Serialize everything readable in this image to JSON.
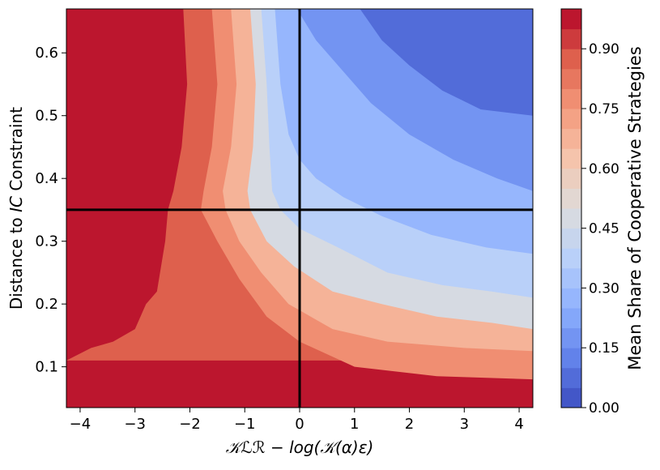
{
  "chart_data": {
    "type": "heatmap",
    "subtype": "filled-contour",
    "title": "",
    "xlabel": "𝒦ℒℛ − log(𝒦(α)ε)",
    "ylabel": "Distance to IC Constraint",
    "ylabel_parts": {
      "prefix": "Distance to ",
      "italic": "IC",
      "suffix": " Constraint"
    },
    "xlim": [
      -4.25,
      4.25
    ],
    "ylim": [
      0.035,
      0.67
    ],
    "xticks": [
      -4,
      -3,
      -2,
      -1,
      0,
      1,
      2,
      3,
      4
    ],
    "xtick_labels": [
      "−4",
      "−3",
      "−2",
      "−1",
      "0",
      "1",
      "2",
      "3",
      "4"
    ],
    "yticks": [
      0.1,
      0.2,
      0.3,
      0.4,
      0.5,
      0.6
    ],
    "ytick_labels": [
      "0.1",
      "0.2",
      "0.3",
      "0.4",
      "0.5",
      "0.6"
    ],
    "reference_lines": {
      "vertical_x": 0,
      "horizontal_y": 0.35,
      "color": "#000000"
    },
    "colorbar": {
      "label": "Mean Share of Cooperative Strategies",
      "colormap": "coolwarm",
      "range": [
        0,
        1
      ],
      "levels": 20,
      "ticks": [
        0.0,
        0.15,
        0.3,
        0.45,
        0.6,
        0.75,
        0.9
      ],
      "tick_labels": [
        "0.00",
        "0.15",
        "0.30",
        "0.45",
        "0.60",
        "0.75",
        "0.90"
      ]
    },
    "grid": false,
    "colormap_stops": [
      "#3b4cc0",
      "#6282ea",
      "#8db0fe",
      "#b9d0f9",
      "#dddcdc",
      "#f5c4ac",
      "#f49a7b",
      "#de604d",
      "#b40426"
    ],
    "iso_contours": [
      {
        "level": 0.9,
        "points": [
          [
            -2.12,
            0.67
          ],
          [
            -2.05,
            0.55
          ],
          [
            -2.15,
            0.45
          ],
          [
            -2.3,
            0.38
          ],
          [
            -2.4,
            0.35
          ],
          [
            -2.45,
            0.3
          ],
          [
            -2.6,
            0.22
          ],
          [
            -2.8,
            0.2
          ],
          [
            -3.0,
            0.16
          ],
          [
            -3.4,
            0.14
          ],
          [
            -3.8,
            0.13
          ],
          [
            -4.25,
            0.11
          ]
        ]
      },
      {
        "level": 0.8,
        "points": [
          [
            -1.6,
            0.67
          ],
          [
            -1.5,
            0.55
          ],
          [
            -1.6,
            0.45
          ],
          [
            -1.75,
            0.38
          ],
          [
            -1.8,
            0.35
          ],
          [
            -1.5,
            0.3
          ],
          [
            -1.1,
            0.24
          ],
          [
            -0.6,
            0.18
          ],
          [
            0.0,
            0.14
          ],
          [
            1.0,
            0.1
          ],
          [
            2.5,
            0.085
          ],
          [
            4.25,
            0.08
          ]
        ]
      },
      {
        "level": 0.7,
        "points": [
          [
            -1.25,
            0.67
          ],
          [
            -1.15,
            0.55
          ],
          [
            -1.25,
            0.45
          ],
          [
            -1.4,
            0.38
          ],
          [
            -1.35,
            0.35
          ],
          [
            -1.1,
            0.3
          ],
          [
            -0.7,
            0.25
          ],
          [
            -0.2,
            0.2
          ],
          [
            0.6,
            0.16
          ],
          [
            1.6,
            0.14
          ],
          [
            3.0,
            0.13
          ],
          [
            4.25,
            0.125
          ]
        ]
      },
      {
        "level": 0.5,
        "points": [
          [
            -0.9,
            0.67
          ],
          [
            -0.8,
            0.55
          ],
          [
            -0.85,
            0.45
          ],
          [
            -0.95,
            0.38
          ],
          [
            -0.9,
            0.35
          ],
          [
            -0.6,
            0.3
          ],
          [
            -0.1,
            0.26
          ],
          [
            0.6,
            0.22
          ],
          [
            1.5,
            0.2
          ],
          [
            2.5,
            0.18
          ],
          [
            3.5,
            0.17
          ],
          [
            4.25,
            0.16
          ]
        ]
      },
      {
        "level": 0.4,
        "points": [
          [
            -0.7,
            0.67
          ],
          [
            -0.6,
            0.55
          ],
          [
            -0.55,
            0.45
          ],
          [
            -0.5,
            0.38
          ],
          [
            -0.35,
            0.35
          ],
          [
            0.0,
            0.32
          ],
          [
            0.7,
            0.29
          ],
          [
            1.6,
            0.25
          ],
          [
            2.6,
            0.23
          ],
          [
            3.5,
            0.22
          ],
          [
            4.25,
            0.21
          ]
        ]
      },
      {
        "level": 0.3,
        "points": [
          [
            -0.45,
            0.67
          ],
          [
            -0.35,
            0.55
          ],
          [
            -0.2,
            0.47
          ],
          [
            0.0,
            0.43
          ],
          [
            0.3,
            0.4
          ],
          [
            0.8,
            0.37
          ],
          [
            1.5,
            0.34
          ],
          [
            2.4,
            0.31
          ],
          [
            3.4,
            0.29
          ],
          [
            4.25,
            0.28
          ]
        ]
      },
      {
        "level": 0.2,
        "points": [
          [
            -0.05,
            0.67
          ],
          [
            0.3,
            0.62
          ],
          [
            0.8,
            0.57
          ],
          [
            1.3,
            0.52
          ],
          [
            2.0,
            0.47
          ],
          [
            2.8,
            0.43
          ],
          [
            3.6,
            0.4
          ],
          [
            4.25,
            0.38
          ]
        ]
      },
      {
        "level": 0.1,
        "points": [
          [
            1.1,
            0.67
          ],
          [
            1.5,
            0.62
          ],
          [
            2.0,
            0.58
          ],
          [
            2.6,
            0.54
          ],
          [
            3.3,
            0.51
          ],
          [
            4.25,
            0.5
          ]
        ]
      }
    ]
  }
}
